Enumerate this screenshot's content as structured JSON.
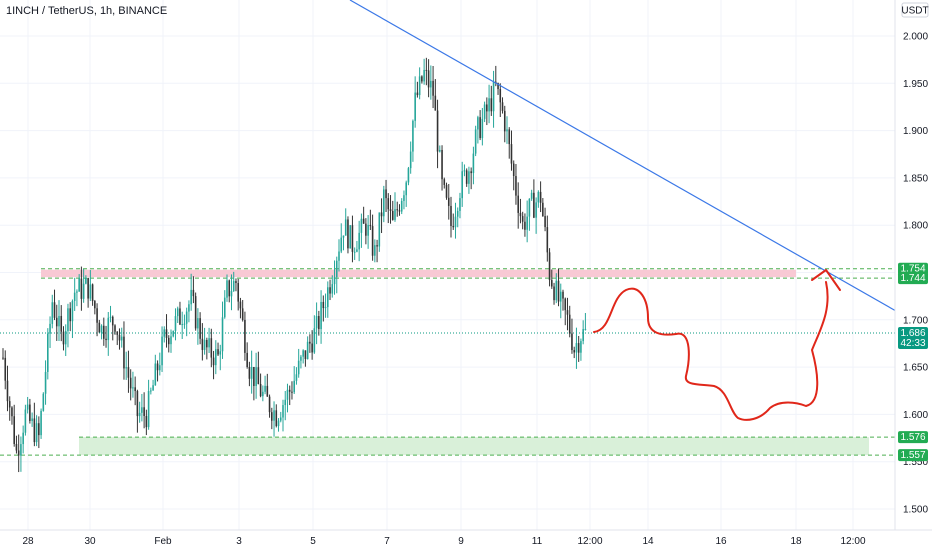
{
  "chart_data": {
    "type": "candlestick",
    "title": "1INCH / TetherUS, 1h, BINANCE",
    "currency_label": "USDT",
    "y_ticks": [
      1.5,
      1.55,
      1.6,
      1.65,
      1.7,
      1.75,
      1.8,
      1.85,
      1.9,
      1.95,
      2.0
    ],
    "y_tick_labels": [
      "1.500",
      "1.550",
      "1.600",
      "1.650",
      "1.700",
      "1.750",
      "1.800",
      "1.850",
      "1.900",
      "1.950",
      "2.000"
    ],
    "x_tick_labels": [
      "28",
      "30",
      "Feb",
      "3",
      "5",
      "7",
      "9",
      "11",
      "12:00",
      "14",
      "16",
      "18",
      "12:00"
    ],
    "ylim": [
      1.5,
      2.0
    ],
    "price_path": [
      [
        0,
        1.66
      ],
      [
        6,
        1.56
      ],
      [
        10,
        1.6
      ],
      [
        16,
        1.575
      ],
      [
        22,
        1.72
      ],
      [
        26,
        1.68
      ],
      [
        32,
        1.73
      ],
      [
        38,
        1.735
      ],
      [
        44,
        1.69
      ],
      [
        50,
        1.7
      ],
      [
        56,
        1.64
      ],
      [
        60,
        1.6
      ],
      [
        64,
        1.6
      ],
      [
        72,
        1.68
      ],
      [
        78,
        1.7
      ],
      [
        84,
        1.72
      ],
      [
        90,
        1.67
      ],
      [
        96,
        1.66
      ],
      [
        100,
        1.73
      ],
      [
        104,
        1.74
      ],
      [
        110,
        1.65
      ],
      [
        116,
        1.62
      ],
      [
        122,
        1.6
      ],
      [
        128,
        1.625
      ],
      [
        134,
        1.66
      ],
      [
        140,
        1.69
      ],
      [
        146,
        1.74
      ],
      [
        152,
        1.8
      ],
      [
        156,
        1.78
      ],
      [
        162,
        1.8
      ],
      [
        166,
        1.77
      ],
      [
        170,
        1.83
      ],
      [
        174,
        1.8
      ],
      [
        180,
        1.85
      ],
      [
        184,
        1.93
      ],
      [
        188,
        1.96
      ],
      [
        192,
        1.94
      ],
      [
        196,
        1.84
      ],
      [
        200,
        1.8
      ],
      [
        204,
        1.84
      ],
      [
        208,
        1.86
      ],
      [
        212,
        1.9
      ],
      [
        216,
        1.92
      ],
      [
        220,
        1.945
      ],
      [
        224,
        1.91
      ],
      [
        228,
        1.85
      ],
      [
        232,
        1.8
      ],
      [
        236,
        1.82
      ],
      [
        240,
        1.83
      ],
      [
        244,
        1.75
      ],
      [
        248,
        1.72
      ],
      [
        252,
        1.7
      ],
      [
        255,
        1.67
      ],
      [
        258,
        1.685
      ],
      [
        260,
        1.686
      ]
    ],
    "resistance_zone": {
      "top": 1.754,
      "bottom": 1.744,
      "color": "#f8c9d4",
      "line_color": "#4caf50"
    },
    "support_zone": {
      "top": 1.576,
      "bottom": 1.557,
      "color": "#d9f0d9",
      "line_color": "#4caf50"
    },
    "current_price": 1.686,
    "countdown": "42:33",
    "price_tags": [
      {
        "label": "1.754",
        "value": 1.754,
        "color": "#22ab53"
      },
      {
        "label": "1.744",
        "value": 1.744,
        "color": "#22ab53"
      },
      {
        "label": "1.686",
        "value": 1.686,
        "color": "#089981"
      },
      {
        "label": "1.576",
        "value": 1.576,
        "color": "#22ab53"
      },
      {
        "label": "1.557",
        "value": 1.557,
        "color": "#22ab53"
      }
    ],
    "colors": {
      "up": "#26a69a",
      "down": "#333333",
      "trendline": "#3b78e7",
      "projection": "#e0271a"
    }
  }
}
